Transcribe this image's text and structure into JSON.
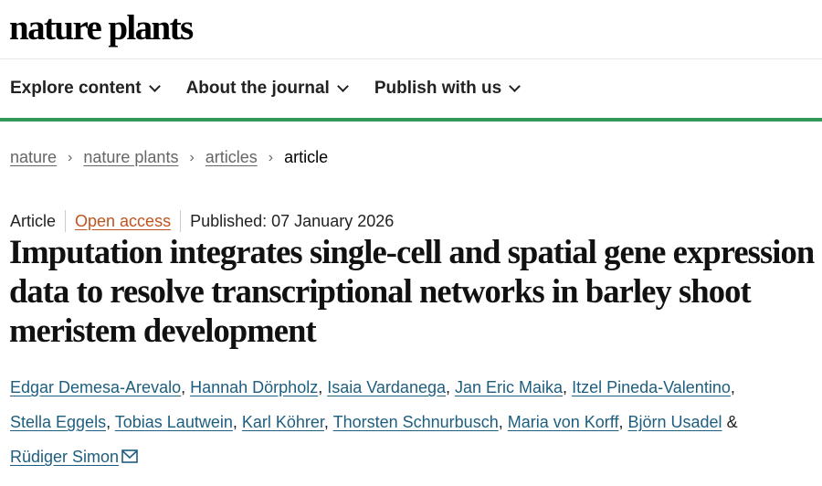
{
  "header": {
    "logo": "nature plants"
  },
  "nav": [
    {
      "label": "Explore content"
    },
    {
      "label": "About the journal"
    },
    {
      "label": "Publish with us"
    }
  ],
  "breadcrumb": [
    {
      "label": "nature"
    },
    {
      "label": "nature plants"
    },
    {
      "label": "articles"
    },
    {
      "label": "article"
    }
  ],
  "article": {
    "type": "Article",
    "access": "Open access",
    "published": "Published: 07 January 2026",
    "title": "Imputation integrates single-cell and spatial gene expression data to resolve transcriptional networks in barley shoot meristem development",
    "authors": [
      "Edgar Demesa-Arevalo",
      "Hannah Dörpholz",
      "Isaia Vardanega",
      "Jan Eric Maika",
      "Itzel Pineda-Valentino",
      "Stella Eggels",
      "Tobias Lautwein",
      "Karl Köhrer",
      "Thorsten Schnurbusch",
      "Maria von Korff",
      "Björn Usadel",
      "Rüdiger Simon"
    ],
    "ampersand": "&"
  },
  "colors": {
    "accent_green": "#2f9a55",
    "link": "#1d5e80",
    "open_access": "#c0541f"
  }
}
